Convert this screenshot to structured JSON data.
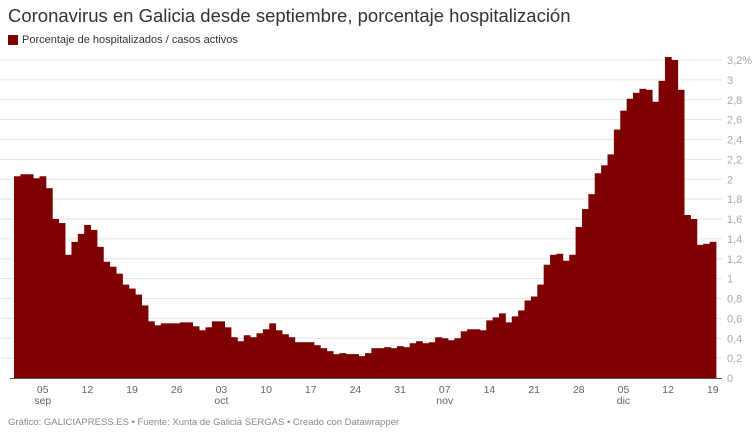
{
  "colors": {
    "bar": "#7f0000",
    "grid": "#e6e6e6",
    "axis": "#555555"
  },
  "chart_data": {
    "type": "bar",
    "title": "Coronavirus en Galicia desde septiembre, porcentaje hospitalización",
    "legend": "Porcentaje de hospitalizados / casos activos",
    "legend_placement": "top-left",
    "grid": true,
    "start_date": "2020-09-01",
    "end_date": "2020-12-19",
    "ylim": [
      0,
      3.2
    ],
    "y_ticks": [
      {
        "value": 0,
        "label": "0"
      },
      {
        "value": 0.2,
        "label": "0,2"
      },
      {
        "value": 0.4,
        "label": "0,4"
      },
      {
        "value": 0.6,
        "label": "0,6"
      },
      {
        "value": 0.8,
        "label": "0,8"
      },
      {
        "value": 1,
        "label": "1"
      },
      {
        "value": 1.2,
        "label": "1,2"
      },
      {
        "value": 1.4,
        "label": "1,4"
      },
      {
        "value": 1.6,
        "label": "1,6"
      },
      {
        "value": 1.8,
        "label": "1,8"
      },
      {
        "value": 2,
        "label": "2"
      },
      {
        "value": 2.2,
        "label": "2,2"
      },
      {
        "value": 2.4,
        "label": "2,4"
      },
      {
        "value": 2.6,
        "label": "2,6"
      },
      {
        "value": 2.8,
        "label": "2,8"
      },
      {
        "value": 3,
        "label": "3"
      },
      {
        "value": 3.2,
        "label": "3,2%"
      }
    ],
    "x_ticks": [
      {
        "date": "2020-09-05",
        "label": "05",
        "month": "sep"
      },
      {
        "date": "2020-09-12",
        "label": "12"
      },
      {
        "date": "2020-09-19",
        "label": "19"
      },
      {
        "date": "2020-09-26",
        "label": "26"
      },
      {
        "date": "2020-10-03",
        "label": "03",
        "month": "oct"
      },
      {
        "date": "2020-10-10",
        "label": "10"
      },
      {
        "date": "2020-10-17",
        "label": "17"
      },
      {
        "date": "2020-10-24",
        "label": "24"
      },
      {
        "date": "2020-10-31",
        "label": "31"
      },
      {
        "date": "2020-11-07",
        "label": "07",
        "month": "nov"
      },
      {
        "date": "2020-11-14",
        "label": "14"
      },
      {
        "date": "2020-11-21",
        "label": "21"
      },
      {
        "date": "2020-11-28",
        "label": "28"
      },
      {
        "date": "2020-12-05",
        "label": "05",
        "month": "dic"
      },
      {
        "date": "2020-12-12",
        "label": "12"
      },
      {
        "date": "2020-12-19",
        "label": "19"
      }
    ],
    "values": [
      2.03,
      2.05,
      2.05,
      2.01,
      2.03,
      1.91,
      1.6,
      1.56,
      1.24,
      1.37,
      1.45,
      1.54,
      1.49,
      1.32,
      1.17,
      1.12,
      1.05,
      0.94,
      0.9,
      0.84,
      0.73,
      0.57,
      0.53,
      0.55,
      0.55,
      0.55,
      0.56,
      0.56,
      0.52,
      0.48,
      0.51,
      0.57,
      0.57,
      0.51,
      0.41,
      0.37,
      0.43,
      0.41,
      0.45,
      0.49,
      0.55,
      0.48,
      0.44,
      0.41,
      0.36,
      0.36,
      0.36,
      0.33,
      0.3,
      0.27,
      0.24,
      0.25,
      0.24,
      0.24,
      0.22,
      0.25,
      0.3,
      0.3,
      0.31,
      0.3,
      0.32,
      0.31,
      0.35,
      0.37,
      0.35,
      0.36,
      0.41,
      0.4,
      0.38,
      0.4,
      0.47,
      0.49,
      0.49,
      0.48,
      0.58,
      0.61,
      0.65,
      0.56,
      0.62,
      0.68,
      0.78,
      0.82,
      0.94,
      1.14,
      1.24,
      1.25,
      1.18,
      1.24,
      1.52,
      1.7,
      1.85,
      2.06,
      2.14,
      2.25,
      2.5,
      2.69,
      2.81,
      2.87,
      2.91,
      2.9,
      2.78,
      2.99,
      3.23,
      3.2,
      2.9,
      1.64,
      1.6,
      1.34,
      1.35,
      1.37
    ]
  },
  "footer": "Gráfico: GALICIAPRESS.ES • Fuente: Xunta de Galicia SERGAS • Creado con Datawrapper"
}
